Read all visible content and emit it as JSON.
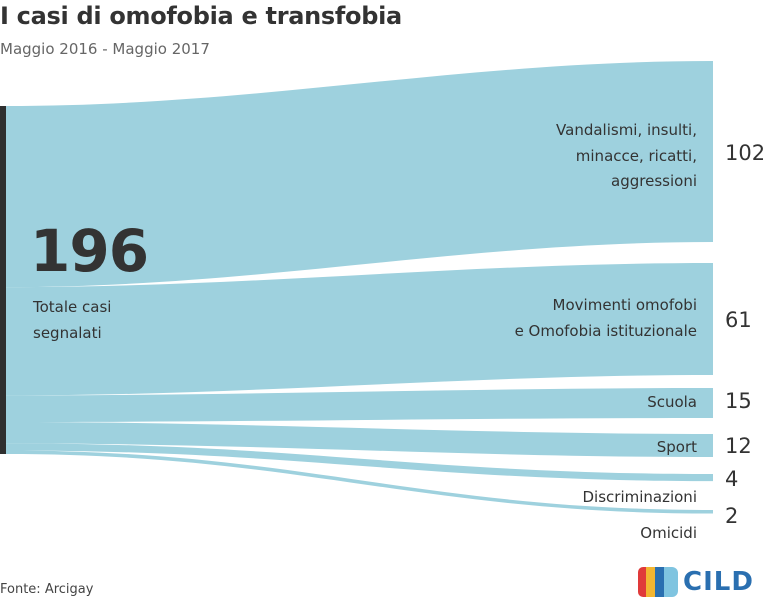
{
  "header": {
    "title": "I casi di omofobia e transfobia",
    "subtitle": "Maggio 2016 - Maggio 2017"
  },
  "footer": {
    "source": "Fonte: Arcigay",
    "logo_text": "CILD"
  },
  "colors": {
    "flow": "#9ed1de",
    "bar": "#2f2f2f",
    "text": "#333333",
    "logo_red": "#e03a3a",
    "logo_yellow": "#f2b632",
    "logo_blue": "#2a6fb0",
    "logo_lightblue": "#7fc4e0"
  },
  "chart_data": {
    "type": "sankey",
    "source": {
      "label": "Totale casi segnalati",
      "label_lines": [
        "Totale casi",
        "segnalati"
      ],
      "value": 196
    },
    "flows": [
      {
        "target": "Vandalismi, insulti, minacce, ricatti, aggressioni",
        "label_lines": [
          "Vandalismi, insulti,",
          "minacce, ricatti,",
          "aggressioni"
        ],
        "value": 102
      },
      {
        "target": "Movimenti omofobi e Omofobia istituzionale",
        "label_lines": [
          "Movimenti omofobi",
          "e Omofobia istituzionale"
        ],
        "value": 61
      },
      {
        "target": "Scuola",
        "label_lines": [
          "Scuola"
        ],
        "value": 15
      },
      {
        "target": "Sport",
        "label_lines": [
          "Sport"
        ],
        "value": 12
      },
      {
        "target": "Discriminazioni",
        "label_lines": [
          "Discriminazioni"
        ],
        "value": 4
      },
      {
        "target": "Omicidi",
        "label_lines": [
          "Omicidi"
        ],
        "value": 2
      }
    ]
  }
}
